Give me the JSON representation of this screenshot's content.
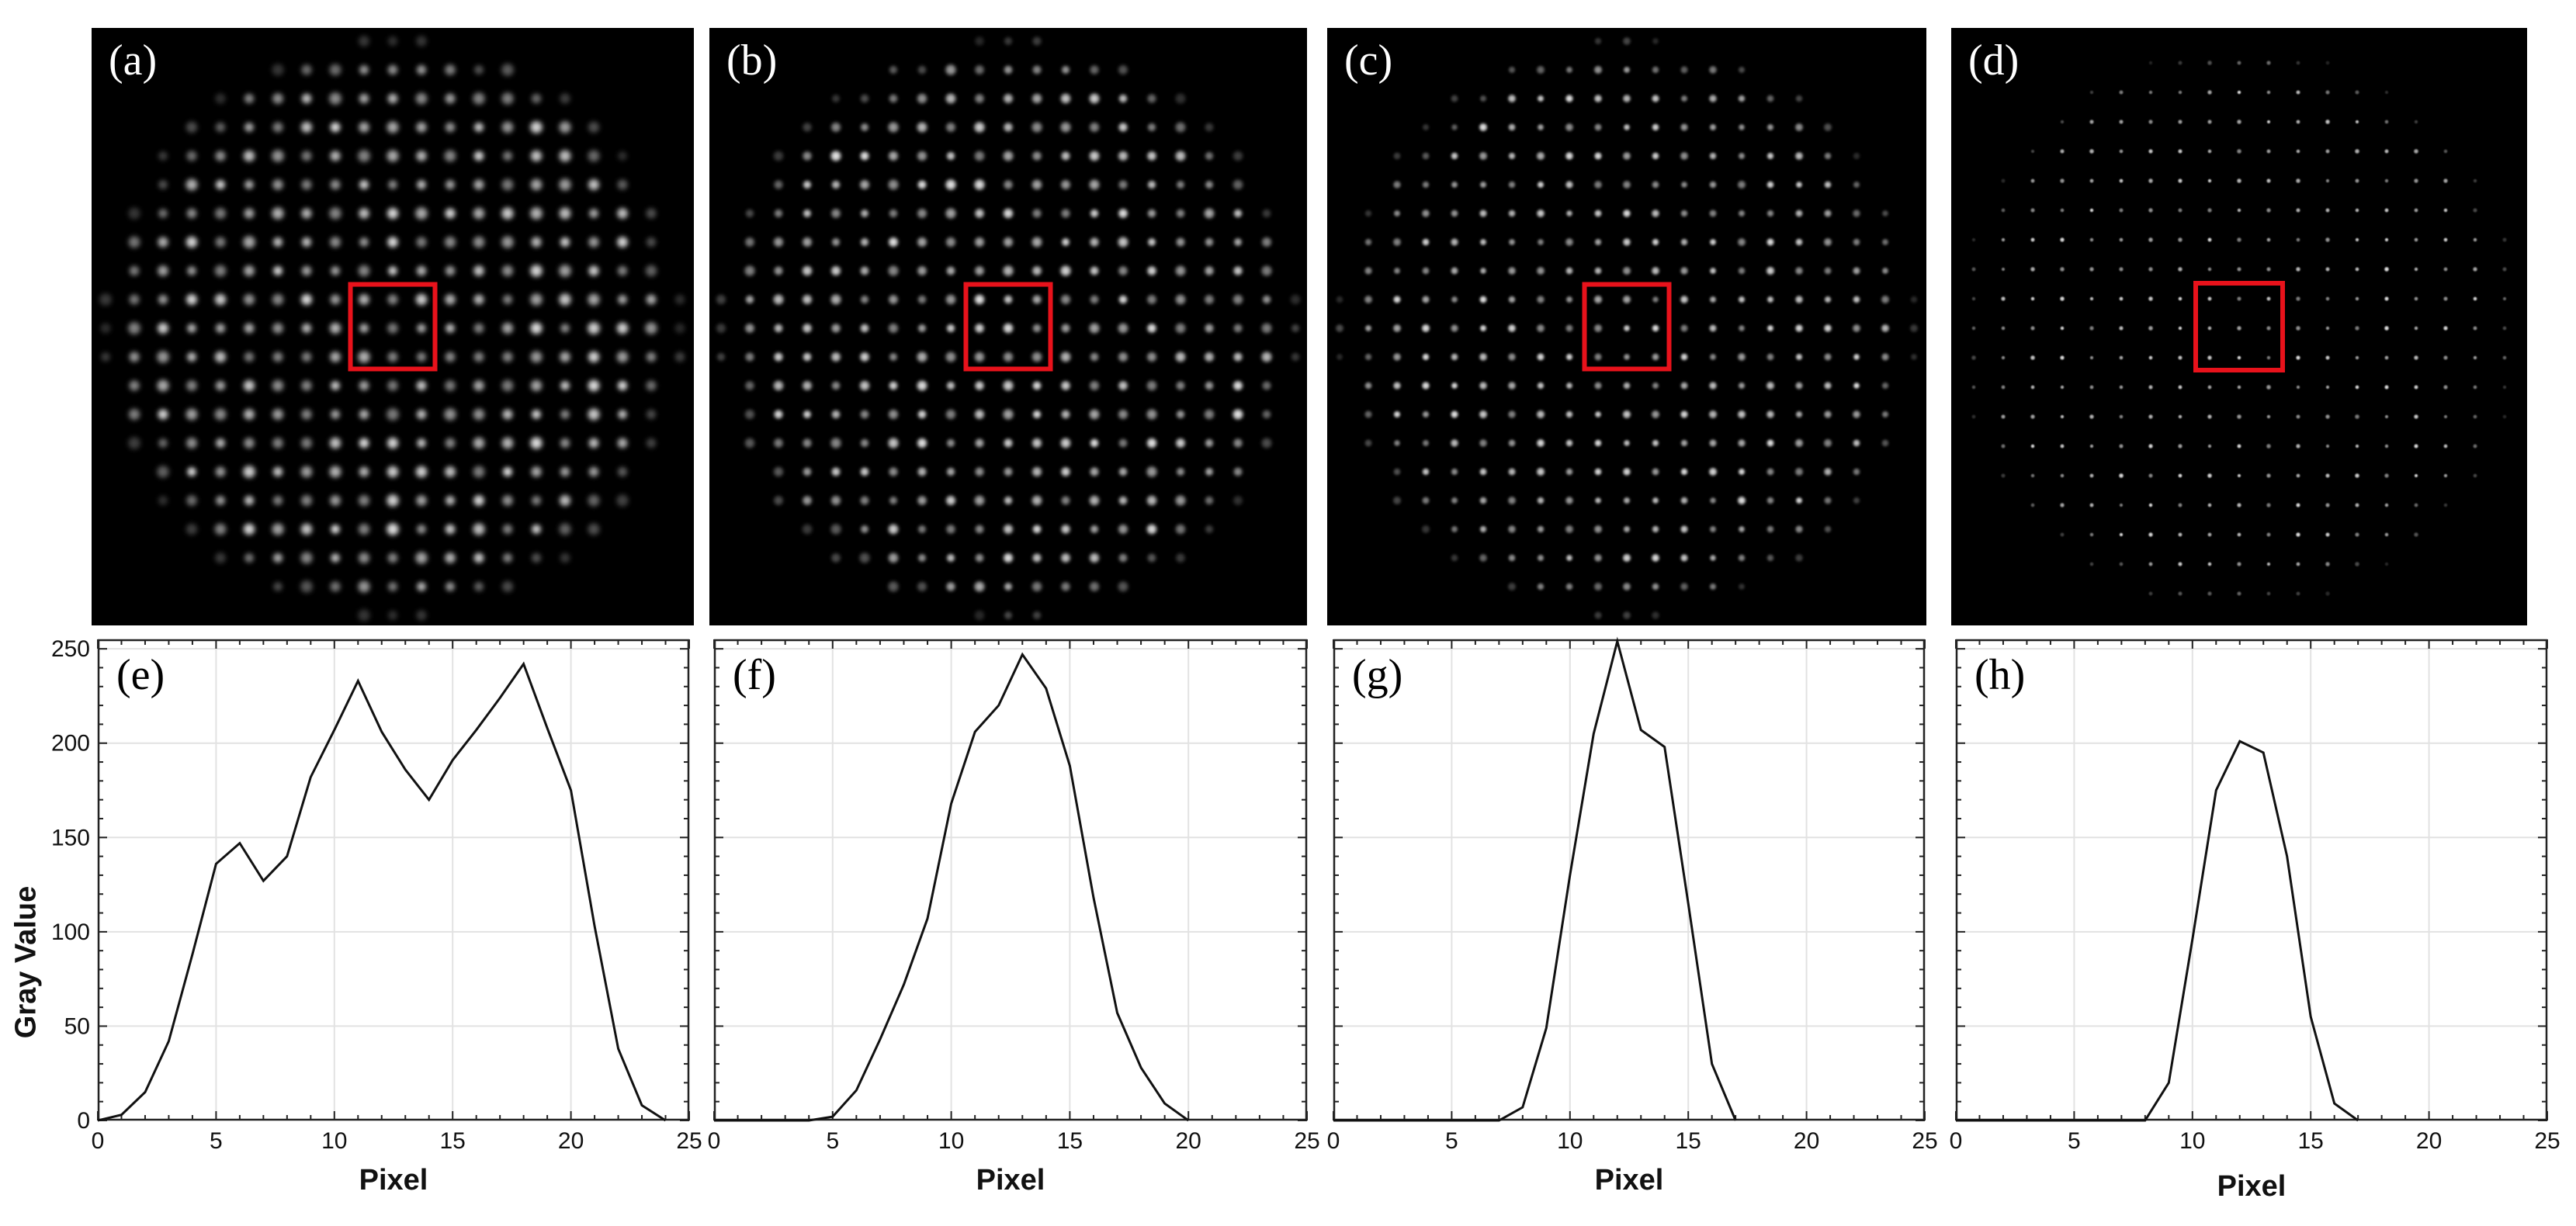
{
  "image_panels": [
    {
      "label": "(a)",
      "spot_style": "blurred"
    },
    {
      "label": "(b)",
      "spot_style": "medium"
    },
    {
      "label": "(c)",
      "spot_style": "sharp"
    },
    {
      "label": "(d)",
      "spot_style": "sharpest"
    }
  ],
  "highlight_color": "#e8121b",
  "ylabel": "Gray Value",
  "chart_data": [
    {
      "type": "line",
      "label": "(e)",
      "xlabel": "Pixel",
      "ylabel": "Gray Value",
      "xlim": [
        0,
        25
      ],
      "ylim": [
        0,
        255
      ],
      "xticks": [
        0,
        5,
        10,
        15,
        20,
        25
      ],
      "yticks": [
        0,
        50,
        100,
        150,
        200,
        250
      ],
      "grid": true,
      "x": [
        0,
        1,
        2,
        3,
        4,
        5,
        6,
        7,
        8,
        9,
        10,
        11,
        12,
        13,
        14,
        15,
        16,
        17,
        18,
        19,
        20,
        21,
        22,
        23,
        24
      ],
      "y": [
        0,
        3,
        15,
        42,
        88,
        136,
        147,
        127,
        140,
        182,
        207,
        233,
        206,
        186,
        170,
        191,
        207,
        224,
        242,
        208,
        175,
        103,
        38,
        8,
        0
      ]
    },
    {
      "type": "line",
      "label": "(f)",
      "xlabel": "Pixel",
      "xlim": [
        0,
        25
      ],
      "ylim": [
        0,
        255
      ],
      "xticks": [
        0,
        5,
        10,
        15,
        20,
        25
      ],
      "yticks": [],
      "grid": true,
      "x": [
        0,
        1,
        2,
        3,
        4,
        5,
        6,
        7,
        8,
        9,
        10,
        11,
        12,
        13,
        14,
        15,
        16,
        17,
        18,
        19,
        20
      ],
      "y": [
        0,
        0,
        0,
        0,
        0,
        2,
        16,
        43,
        72,
        107,
        168,
        206,
        220,
        247,
        229,
        188,
        118,
        57,
        28,
        9,
        0
      ]
    },
    {
      "type": "line",
      "label": "(g)",
      "xlabel": "Pixel",
      "xlim": [
        0,
        25
      ],
      "ylim": [
        0,
        255
      ],
      "xticks": [
        0,
        5,
        10,
        15,
        20,
        25
      ],
      "yticks": [],
      "grid": true,
      "x": [
        0,
        1,
        2,
        3,
        4,
        5,
        6,
        7,
        8,
        9,
        10,
        11,
        12,
        13,
        14,
        15,
        16,
        17
      ],
      "y": [
        0,
        0,
        0,
        0,
        0,
        0,
        0,
        0,
        7,
        49,
        130,
        205,
        254,
        207,
        198,
        115,
        30,
        0
      ]
    },
    {
      "type": "line",
      "label": "(h)",
      "xlabel": "Pixel",
      "xlim": [
        0,
        25
      ],
      "ylim": [
        0,
        255
      ],
      "xticks": [
        0,
        5,
        10,
        15,
        20,
        25
      ],
      "yticks": [],
      "grid": true,
      "x": [
        0,
        1,
        2,
        3,
        4,
        5,
        6,
        7,
        8,
        9,
        10,
        11,
        12,
        13,
        14,
        15,
        16,
        17
      ],
      "y": [
        0,
        0,
        0,
        0,
        0,
        0,
        0,
        0,
        0,
        20,
        96,
        175,
        201,
        195,
        140,
        55,
        9,
        0
      ]
    }
  ]
}
